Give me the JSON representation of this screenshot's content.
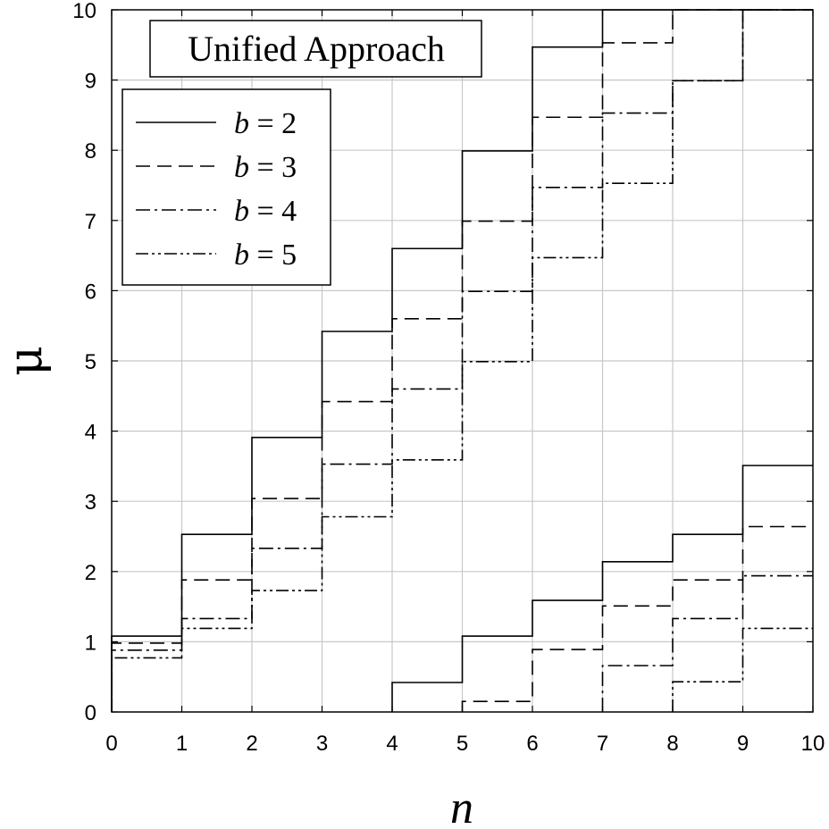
{
  "chart_data": {
    "type": "line",
    "title": "Unified Approach",
    "xlabel": "n",
    "ylabel": "μ",
    "xlim": [
      0,
      10
    ],
    "ylim": [
      0,
      10
    ],
    "xticks": [
      "0",
      "1",
      "2",
      "3",
      "4",
      "5",
      "6",
      "7",
      "8",
      "9",
      "10"
    ],
    "yticks": [
      "0",
      "1",
      "2",
      "3",
      "4",
      "5",
      "6",
      "7",
      "8",
      "9",
      "10"
    ],
    "grid": true,
    "legend_position": "top-left",
    "step": true,
    "series": [
      {
        "name": "b = 2",
        "legend_var": "b",
        "legend_value": "2",
        "dash": "solid",
        "upper": [
          1.08,
          2.53,
          3.91,
          5.42,
          6.6,
          7.99,
          9.47,
          10.0,
          10.0,
          10.0
        ],
        "lower": [
          0,
          0,
          0,
          0,
          0.42,
          1.08,
          1.59,
          2.14,
          2.53,
          3.51
        ]
      },
      {
        "name": "b = 3",
        "legend_var": "b",
        "legend_value": "3",
        "dash": "dash",
        "upper": [
          0.98,
          1.88,
          3.04,
          4.42,
          5.6,
          6.99,
          8.47,
          9.53,
          10.0,
          10.0
        ],
        "lower": [
          0,
          0,
          0,
          0,
          0,
          0.15,
          0.89,
          1.51,
          1.88,
          2.64
        ]
      },
      {
        "name": "b = 4",
        "legend_var": "b",
        "legend_value": "4",
        "dash": "dashdot",
        "upper": [
          0.88,
          1.33,
          2.33,
          3.53,
          4.6,
          5.99,
          7.47,
          8.53,
          8.99,
          10.0
        ],
        "lower": [
          0,
          0,
          0,
          0,
          0,
          0,
          0,
          0.66,
          1.33,
          1.94
        ]
      },
      {
        "name": "b = 5",
        "legend_var": "b",
        "legend_value": "5",
        "dash": "dashdotdot",
        "upper": [
          0.77,
          1.19,
          1.73,
          2.78,
          3.59,
          4.99,
          6.47,
          7.53,
          8.99,
          10.0
        ],
        "lower": [
          0,
          0,
          0,
          0,
          0,
          0,
          0,
          0,
          0.43,
          1.19
        ]
      }
    ]
  }
}
